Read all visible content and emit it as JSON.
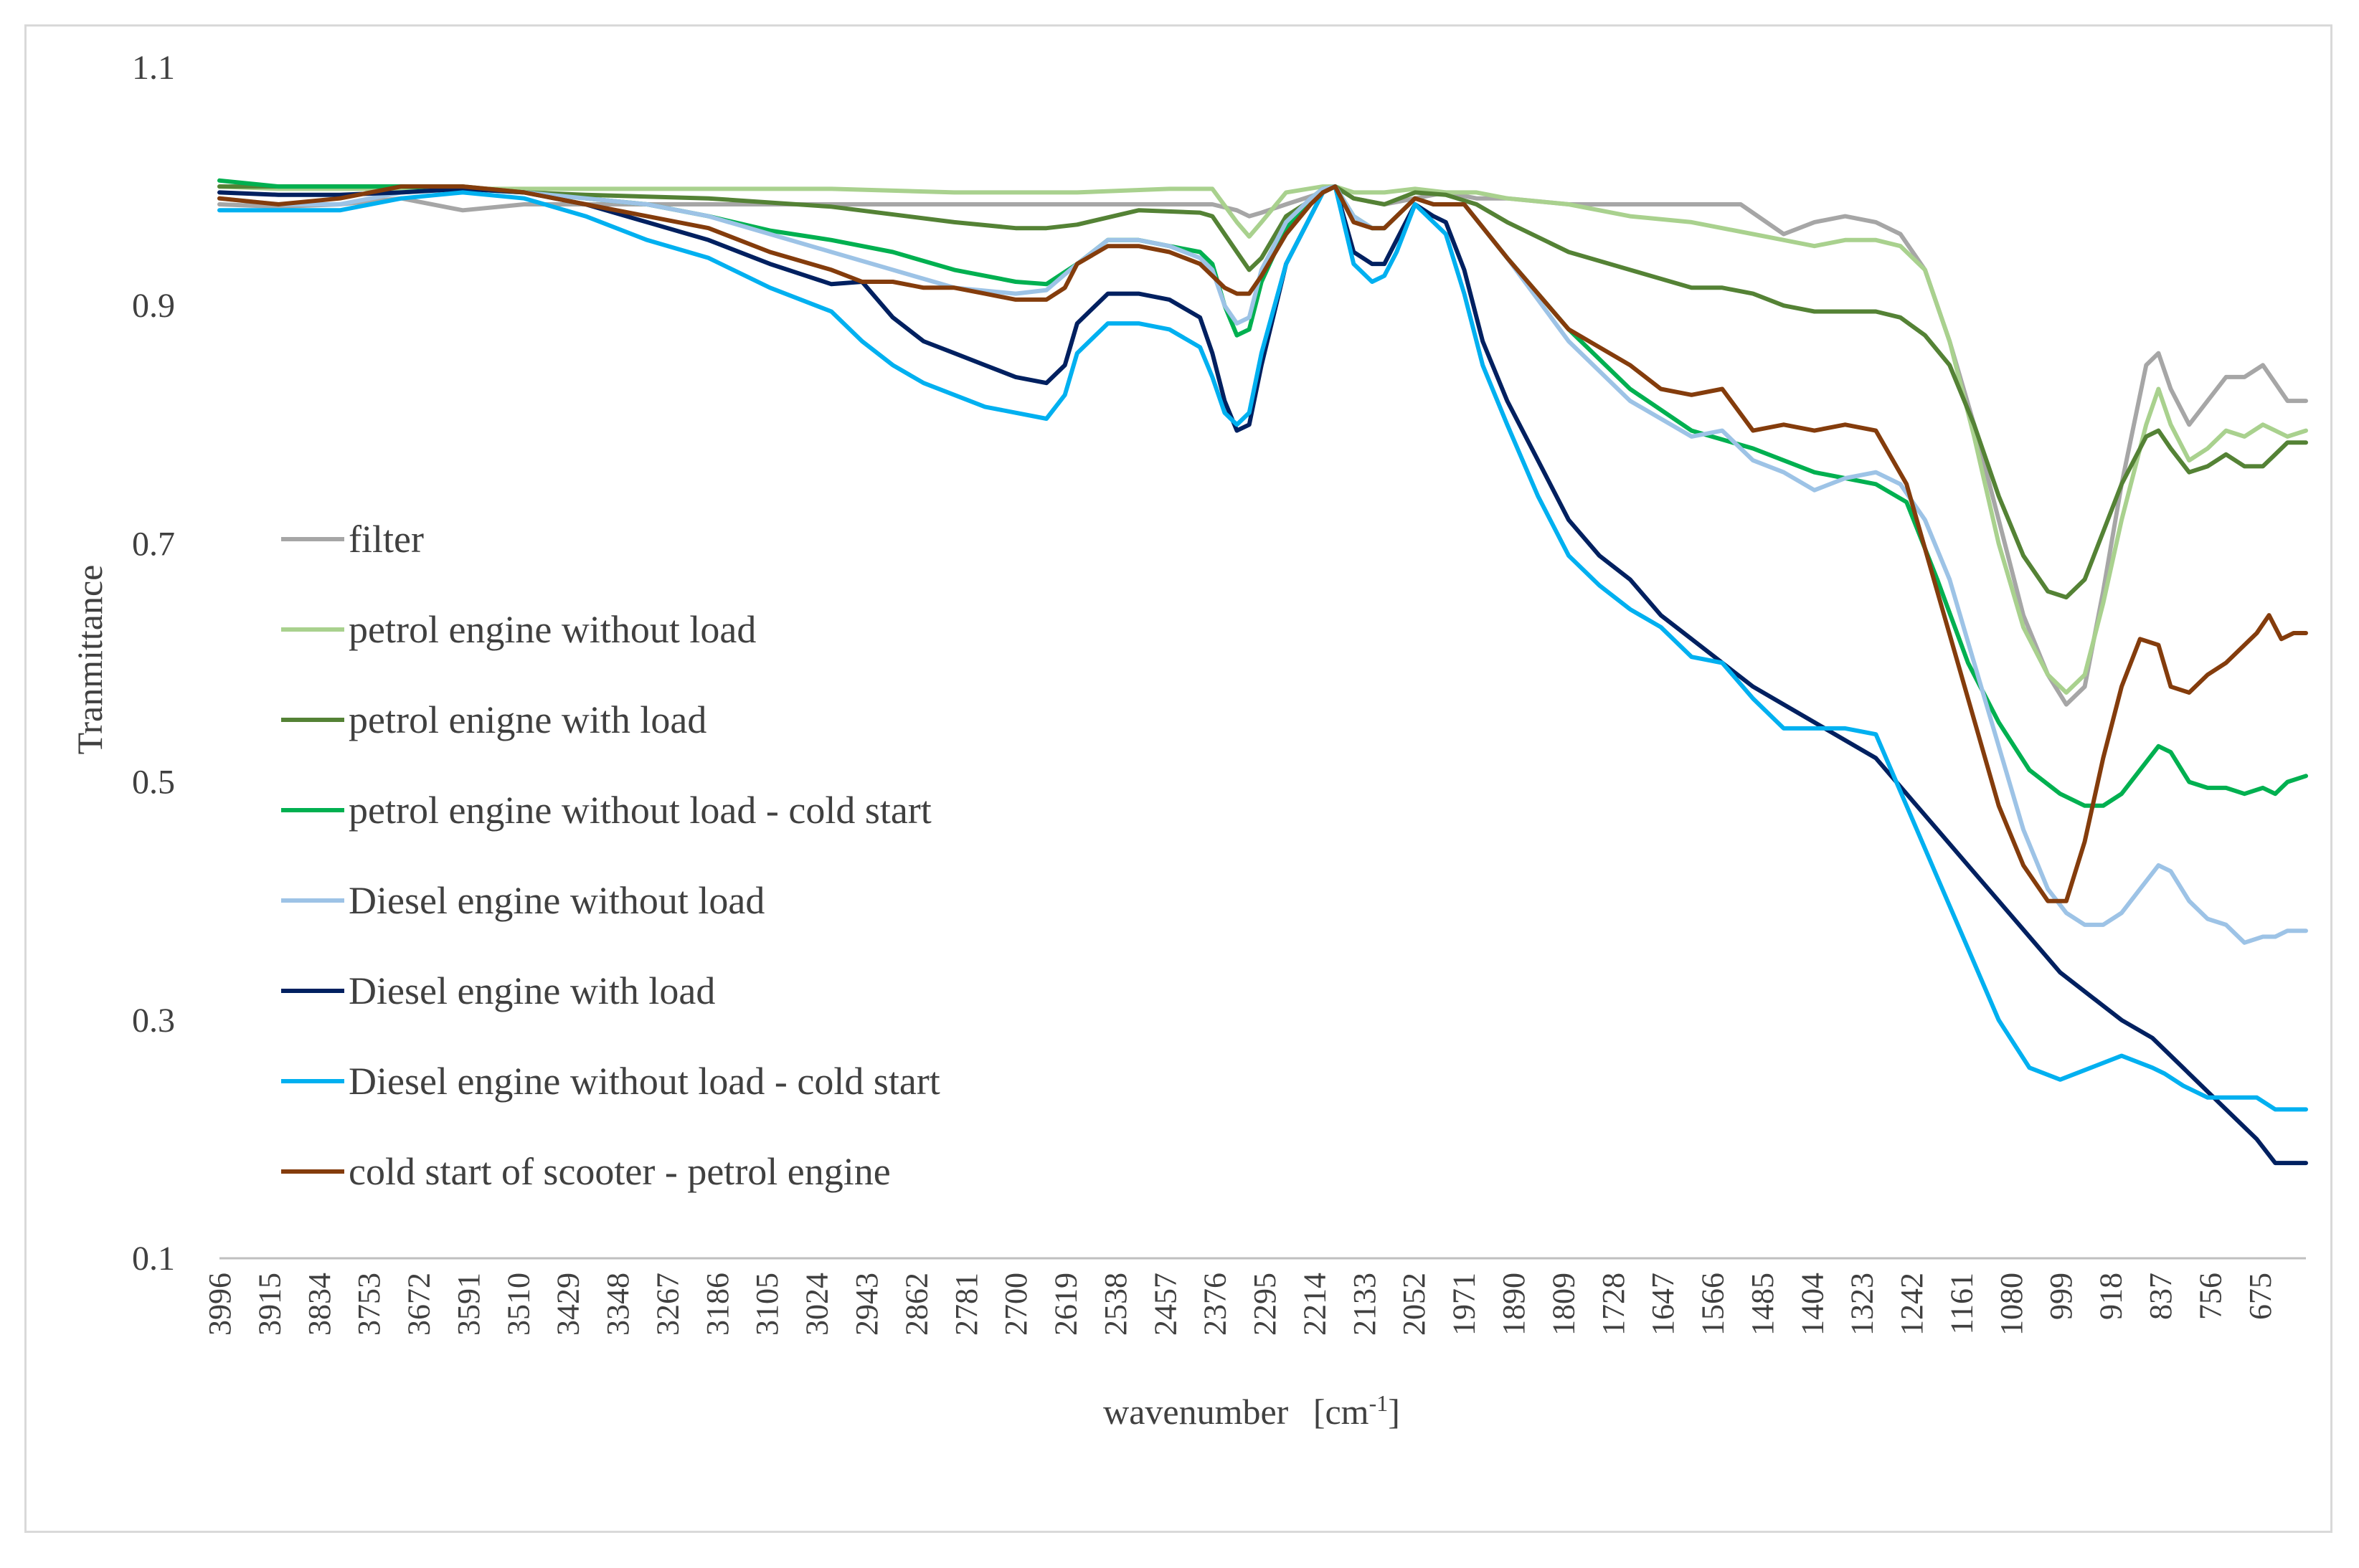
{
  "chart_data": {
    "type": "line",
    "title": "",
    "xlabel": "wavenumber",
    "xlabel_unit_base": "[cm",
    "xlabel_unit_sup": "-1",
    "xlabel_unit_end": "]",
    "ylabel": "Tranmittance",
    "ylim": [
      0.1,
      1.1
    ],
    "yticks": [
      0.1,
      0.3,
      0.5,
      0.7,
      0.9,
      1.1
    ],
    "ytick_labels": [
      "0.1",
      "0.3",
      "0.5",
      "0.7",
      "0.9",
      "1.1"
    ],
    "xlim": [
      3996,
      600
    ],
    "xticks": [
      3996,
      3915,
      3834,
      3753,
      3672,
      3591,
      3510,
      3429,
      3348,
      3267,
      3186,
      3105,
      3024,
      2943,
      2862,
      2781,
      2700,
      2619,
      2538,
      2457,
      2376,
      2295,
      2214,
      2133,
      2052,
      1971,
      1890,
      1809,
      1728,
      1647,
      1566,
      1485,
      1404,
      1323,
      1242,
      1161,
      1080,
      999,
      918,
      837,
      756,
      675
    ],
    "xtick_labels": [
      "3996",
      "3915",
      "3834",
      "3753",
      "3672",
      "3591",
      "3510",
      "3429",
      "3348",
      "3267",
      "3186",
      "3105",
      "3024",
      "2943",
      "2862",
      "2781",
      "2700",
      "2619",
      "2538",
      "2457",
      "2376",
      "2295",
      "2214",
      "2133",
      "2052",
      "1971",
      "1890",
      "1809",
      "1728",
      "1647",
      "1566",
      "1485",
      "1404",
      "1323",
      "1242",
      "1161",
      "1080",
      "999",
      "918",
      "837",
      "756",
      "675"
    ],
    "legend_position": "left",
    "series": [
      {
        "name": "filter",
        "color": "#a6a6a6",
        "x": [
          3996,
          3900,
          3800,
          3700,
          3600,
          3500,
          3400,
          3200,
          3000,
          2800,
          2600,
          2450,
          2380,
          2340,
          2320,
          2300,
          2260,
          2200,
          2180,
          2150,
          2100,
          2050,
          2000,
          1950,
          1900,
          1800,
          1700,
          1600,
          1520,
          1450,
          1400,
          1350,
          1300,
          1260,
          1220,
          1180,
          1140,
          1100,
          1060,
          1020,
          990,
          960,
          930,
          900,
          860,
          840,
          820,
          790,
          760,
          730,
          700,
          670,
          650,
          630,
          600
        ],
        "y": [
          0.985,
          0.983,
          0.985,
          0.99,
          0.98,
          0.985,
          0.985,
          0.985,
          0.985,
          0.985,
          0.985,
          0.985,
          0.985,
          0.98,
          0.975,
          0.978,
          0.985,
          0.995,
          1.0,
          0.99,
          0.985,
          0.99,
          0.995,
          0.99,
          0.99,
          0.985,
          0.985,
          0.985,
          0.985,
          0.96,
          0.97,
          0.975,
          0.97,
          0.96,
          0.93,
          0.87,
          0.8,
          0.72,
          0.64,
          0.59,
          0.565,
          0.58,
          0.66,
          0.75,
          0.85,
          0.86,
          0.83,
          0.8,
          0.82,
          0.84,
          0.84,
          0.85,
          0.835,
          0.82,
          0.82
        ]
      },
      {
        "name": "petrol engine without load",
        "color": "#a9d18e",
        "x": [
          3996,
          3900,
          3800,
          3700,
          3600,
          3500,
          3400,
          3200,
          3000,
          2800,
          2600,
          2450,
          2380,
          2340,
          2320,
          2300,
          2260,
          2200,
          2180,
          2150,
          2100,
          2050,
          2000,
          1950,
          1900,
          1800,
          1700,
          1600,
          1500,
          1450,
          1400,
          1350,
          1300,
          1260,
          1220,
          1180,
          1140,
          1100,
          1060,
          1020,
          990,
          960,
          930,
          900,
          860,
          840,
          820,
          790,
          760,
          730,
          700,
          670,
          650,
          630,
          600
        ],
        "y": [
          1.0,
          0.998,
          0.998,
          0.998,
          0.998,
          0.998,
          0.998,
          0.998,
          0.998,
          0.995,
          0.995,
          0.998,
          0.998,
          0.97,
          0.958,
          0.97,
          0.995,
          1.0,
          1.0,
          0.995,
          0.995,
          0.998,
          0.995,
          0.995,
          0.99,
          0.985,
          0.975,
          0.97,
          0.96,
          0.955,
          0.95,
          0.955,
          0.955,
          0.95,
          0.93,
          0.87,
          0.79,
          0.7,
          0.63,
          0.59,
          0.575,
          0.59,
          0.65,
          0.72,
          0.8,
          0.83,
          0.8,
          0.77,
          0.78,
          0.795,
          0.79,
          0.8,
          0.795,
          0.79,
          0.795
        ]
      },
      {
        "name": "petrol enigne with load",
        "color": "#548235",
        "x": [
          3996,
          3900,
          3800,
          3700,
          3600,
          3500,
          3400,
          3200,
          3000,
          2800,
          2700,
          2650,
          2600,
          2500,
          2400,
          2380,
          2340,
          2320,
          2300,
          2260,
          2200,
          2180,
          2150,
          2100,
          2050,
          2000,
          1950,
          1900,
          1800,
          1700,
          1600,
          1550,
          1500,
          1450,
          1400,
          1350,
          1300,
          1260,
          1220,
          1180,
          1140,
          1100,
          1060,
          1020,
          990,
          960,
          930,
          900,
          860,
          840,
          820,
          790,
          760,
          730,
          700,
          670,
          650,
          630,
          600
        ],
        "y": [
          1.0,
          1.0,
          1.0,
          1.0,
          1.0,
          0.995,
          0.993,
          0.99,
          0.983,
          0.97,
          0.965,
          0.965,
          0.968,
          0.98,
          0.978,
          0.975,
          0.945,
          0.93,
          0.94,
          0.975,
          0.995,
          1.0,
          0.99,
          0.985,
          0.995,
          0.993,
          0.985,
          0.97,
          0.945,
          0.93,
          0.915,
          0.915,
          0.91,
          0.9,
          0.895,
          0.895,
          0.895,
          0.89,
          0.875,
          0.85,
          0.8,
          0.74,
          0.69,
          0.66,
          0.655,
          0.67,
          0.71,
          0.75,
          0.79,
          0.795,
          0.78,
          0.76,
          0.765,
          0.775,
          0.765,
          0.765,
          0.775,
          0.785,
          0.785
        ]
      },
      {
        "name": "petrol engine without load - cold start",
        "color": "#00b050",
        "x": [
          3996,
          3900,
          3800,
          3700,
          3600,
          3500,
          3400,
          3300,
          3200,
          3100,
          3000,
          2900,
          2800,
          2700,
          2650,
          2600,
          2550,
          2500,
          2450,
          2400,
          2380,
          2360,
          2340,
          2320,
          2300,
          2260,
          2220,
          2200,
          2180,
          2150,
          2120,
          2100,
          2080,
          2050,
          2020,
          2000,
          1970,
          1900,
          1800,
          1700,
          1600,
          1500,
          1400,
          1300,
          1250,
          1200,
          1150,
          1100,
          1050,
          1000,
          960,
          930,
          900,
          870,
          840,
          820,
          790,
          760,
          730,
          700,
          670,
          650,
          630,
          600
        ],
        "y": [
          1.005,
          1.0,
          1.0,
          1.0,
          0.998,
          0.995,
          0.99,
          0.985,
          0.975,
          0.963,
          0.955,
          0.945,
          0.93,
          0.92,
          0.918,
          0.935,
          0.955,
          0.955,
          0.95,
          0.945,
          0.935,
          0.9,
          0.875,
          0.88,
          0.92,
          0.965,
          0.99,
          0.998,
          1.0,
          0.975,
          0.965,
          0.965,
          0.975,
          0.99,
          0.985,
          0.985,
          0.985,
          0.94,
          0.88,
          0.83,
          0.795,
          0.78,
          0.76,
          0.75,
          0.735,
          0.67,
          0.6,
          0.55,
          0.51,
          0.49,
          0.48,
          0.48,
          0.49,
          0.51,
          0.53,
          0.525,
          0.5,
          0.495,
          0.495,
          0.49,
          0.495,
          0.49,
          0.5,
          0.505
        ]
      },
      {
        "name": "Diesel engine without load",
        "color": "#9dc3e6",
        "x": [
          3996,
          3900,
          3800,
          3700,
          3600,
          3500,
          3400,
          3300,
          3200,
          3100,
          3000,
          2900,
          2800,
          2700,
          2650,
          2600,
          2550,
          2500,
          2450,
          2400,
          2380,
          2360,
          2340,
          2320,
          2300,
          2260,
          2220,
          2200,
          2180,
          2150,
          2120,
          2100,
          2080,
          2050,
          2020,
          2000,
          1970,
          1900,
          1800,
          1700,
          1600,
          1550,
          1500,
          1450,
          1400,
          1350,
          1300,
          1260,
          1220,
          1180,
          1140,
          1100,
          1060,
          1020,
          990,
          960,
          930,
          900,
          870,
          840,
          820,
          790,
          760,
          730,
          700,
          670,
          650,
          630,
          600
        ],
        "y": [
          0.99,
          0.985,
          0.985,
          0.995,
          0.998,
          0.995,
          0.99,
          0.985,
          0.975,
          0.96,
          0.945,
          0.93,
          0.915,
          0.91,
          0.913,
          0.935,
          0.955,
          0.955,
          0.95,
          0.94,
          0.93,
          0.9,
          0.885,
          0.89,
          0.93,
          0.97,
          0.99,
          0.998,
          1.0,
          0.975,
          0.965,
          0.965,
          0.975,
          0.99,
          0.985,
          0.985,
          0.985,
          0.94,
          0.87,
          0.82,
          0.79,
          0.795,
          0.77,
          0.76,
          0.745,
          0.755,
          0.76,
          0.75,
          0.72,
          0.67,
          0.6,
          0.53,
          0.46,
          0.41,
          0.39,
          0.38,
          0.38,
          0.39,
          0.41,
          0.43,
          0.425,
          0.4,
          0.385,
          0.38,
          0.365,
          0.37,
          0.37,
          0.375,
          0.375
        ]
      },
      {
        "name": "Diesel engine with load",
        "color": "#002060",
        "x": [
          3996,
          3900,
          3800,
          3700,
          3600,
          3500,
          3400,
          3300,
          3200,
          3100,
          3000,
          2950,
          2900,
          2850,
          2800,
          2750,
          2700,
          2650,
          2620,
          2600,
          2550,
          2500,
          2450,
          2400,
          2380,
          2360,
          2340,
          2320,
          2300,
          2260,
          2220,
          2200,
          2180,
          2150,
          2120,
          2100,
          2080,
          2050,
          2020,
          2000,
          1970,
          1940,
          1900,
          1850,
          1800,
          1750,
          1700,
          1650,
          1600,
          1550,
          1500,
          1450,
          1400,
          1350,
          1300,
          1250,
          1200,
          1150,
          1100,
          1050,
          1000,
          950,
          900,
          850,
          800,
          760,
          720,
          680,
          650,
          630,
          600
        ],
        "y": [
          0.995,
          0.993,
          0.993,
          0.995,
          0.998,
          0.995,
          0.985,
          0.97,
          0.955,
          0.935,
          0.918,
          0.92,
          0.89,
          0.87,
          0.86,
          0.85,
          0.84,
          0.835,
          0.85,
          0.885,
          0.91,
          0.91,
          0.905,
          0.89,
          0.86,
          0.82,
          0.795,
          0.8,
          0.85,
          0.935,
          0.975,
          0.995,
          1.0,
          0.945,
          0.935,
          0.935,
          0.955,
          0.985,
          0.975,
          0.97,
          0.93,
          0.87,
          0.82,
          0.77,
          0.72,
          0.69,
          0.67,
          0.64,
          0.62,
          0.6,
          0.58,
          0.565,
          0.55,
          0.535,
          0.52,
          0.49,
          0.46,
          0.43,
          0.4,
          0.37,
          0.34,
          0.32,
          0.3,
          0.285,
          0.26,
          0.24,
          0.22,
          0.2,
          0.18,
          0.18,
          0.18
        ]
      },
      {
        "name": "Diesel engine without load - cold start",
        "color": "#00b0f0",
        "x": [
          3996,
          3900,
          3800,
          3700,
          3600,
          3500,
          3400,
          3300,
          3200,
          3100,
          3000,
          2950,
          2900,
          2850,
          2800,
          2750,
          2700,
          2650,
          2620,
          2600,
          2550,
          2500,
          2450,
          2400,
          2380,
          2360,
          2340,
          2320,
          2300,
          2260,
          2220,
          2200,
          2180,
          2150,
          2120,
          2100,
          2080,
          2050,
          2020,
          2000,
          1970,
          1940,
          1900,
          1850,
          1800,
          1750,
          1700,
          1650,
          1600,
          1550,
          1500,
          1450,
          1400,
          1350,
          1300,
          1250,
          1200,
          1150,
          1100,
          1050,
          1000,
          950,
          900,
          850,
          830,
          800,
          760,
          720,
          680,
          650,
          630,
          600
        ],
        "y": [
          0.98,
          0.98,
          0.98,
          0.99,
          0.995,
          0.99,
          0.975,
          0.955,
          0.94,
          0.915,
          0.895,
          0.87,
          0.85,
          0.835,
          0.825,
          0.815,
          0.81,
          0.805,
          0.825,
          0.86,
          0.885,
          0.885,
          0.88,
          0.865,
          0.84,
          0.81,
          0.8,
          0.81,
          0.86,
          0.935,
          0.975,
          0.995,
          1.0,
          0.935,
          0.92,
          0.925,
          0.945,
          0.985,
          0.97,
          0.96,
          0.91,
          0.85,
          0.8,
          0.74,
          0.69,
          0.665,
          0.645,
          0.63,
          0.605,
          0.6,
          0.57,
          0.545,
          0.545,
          0.545,
          0.54,
          0.48,
          0.42,
          0.36,
          0.3,
          0.26,
          0.25,
          0.26,
          0.27,
          0.26,
          0.255,
          0.245,
          0.235,
          0.235,
          0.235,
          0.225,
          0.225,
          0.225
        ]
      },
      {
        "name": "cold start of scooter - petrol engine",
        "color": "#843c0c",
        "x": [
          3996,
          3900,
          3800,
          3700,
          3600,
          3500,
          3400,
          3300,
          3200,
          3100,
          3000,
          2950,
          2900,
          2850,
          2800,
          2750,
          2700,
          2650,
          2620,
          2600,
          2550,
          2500,
          2450,
          2400,
          2380,
          2360,
          2340,
          2320,
          2300,
          2260,
          2220,
          2200,
          2180,
          2150,
          2120,
          2100,
          2080,
          2050,
          2020,
          2000,
          1970,
          1900,
          1850,
          1800,
          1750,
          1700,
          1650,
          1600,
          1550,
          1500,
          1450,
          1400,
          1350,
          1300,
          1250,
          1200,
          1150,
          1100,
          1060,
          1020,
          990,
          960,
          930,
          900,
          870,
          840,
          820,
          790,
          760,
          730,
          700,
          680,
          660,
          640,
          620,
          600
        ],
        "y": [
          0.99,
          0.985,
          0.99,
          1.0,
          1.0,
          0.995,
          0.985,
          0.975,
          0.965,
          0.945,
          0.93,
          0.92,
          0.92,
          0.915,
          0.915,
          0.91,
          0.905,
          0.905,
          0.915,
          0.935,
          0.95,
          0.95,
          0.945,
          0.935,
          0.925,
          0.915,
          0.91,
          0.91,
          0.925,
          0.96,
          0.985,
          0.995,
          1.0,
          0.97,
          0.965,
          0.965,
          0.975,
          0.99,
          0.985,
          0.985,
          0.985,
          0.94,
          0.91,
          0.88,
          0.865,
          0.85,
          0.83,
          0.825,
          0.83,
          0.795,
          0.8,
          0.795,
          0.8,
          0.795,
          0.75,
          0.66,
          0.57,
          0.48,
          0.43,
          0.4,
          0.4,
          0.45,
          0.52,
          0.58,
          0.62,
          0.615,
          0.58,
          0.575,
          0.59,
          0.6,
          0.615,
          0.625,
          0.64,
          0.62,
          0.625,
          0.625
        ]
      }
    ]
  }
}
